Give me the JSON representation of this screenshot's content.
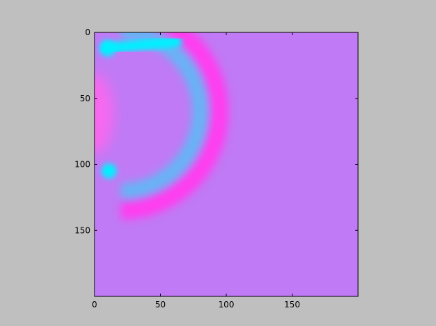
{
  "chart_data": {
    "type": "heatmap",
    "title": "",
    "xlabel": "",
    "ylabel": "",
    "xlim": [
      0,
      200
    ],
    "ylim": [
      200,
      0
    ],
    "y_axis_inverted": true,
    "x_ticks": [
      0,
      50,
      100,
      150
    ],
    "y_ticks": [
      0,
      50,
      100,
      150
    ],
    "grid": false,
    "colormap": "cool",
    "colors": {
      "background": "#c07af5",
      "outer_ring": "#ff3cf0",
      "inner_band": "#66b4f6",
      "hotspot": "#00f0ff",
      "left_edge": "#ff66ee",
      "figure_background": "#bfbfbf"
    },
    "features": [
      {
        "name": "outer magenta arc",
        "shape": "semicircle arc",
        "center": [
          20,
          60
        ],
        "radius": 75
      },
      {
        "name": "inner cyan arc",
        "shape": "semicircle arc",
        "center": [
          20,
          60
        ],
        "radius": 60
      },
      {
        "name": "top cyan streak",
        "from": [
          10,
          12
        ],
        "to": [
          62,
          7
        ]
      },
      {
        "name": "lower cyan hotspot",
        "center": [
          11,
          105
        ]
      }
    ]
  }
}
